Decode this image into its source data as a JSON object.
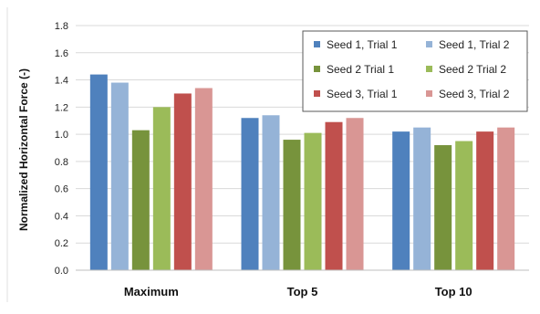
{
  "chart_data": {
    "type": "bar",
    "title": "",
    "xlabel": "",
    "ylabel": "Normalized Horizontal Force (-)",
    "ylim": [
      0,
      1.8
    ],
    "yticks": [
      "0.0",
      "0.2",
      "0.4",
      "0.6",
      "0.8",
      "1.0",
      "1.2",
      "1.4",
      "1.6",
      "1.8"
    ],
    "grid": true,
    "legend_position": "top-right",
    "categories": [
      "Maximum",
      "Top 5",
      "Top 10"
    ],
    "series": [
      {
        "name": "Seed 1, Trial 1",
        "color": "#4f81bd",
        "values": [
          1.44,
          1.12,
          1.02
        ]
      },
      {
        "name": "Seed 1, Trial 2",
        "color": "#95b3d7",
        "values": [
          1.38,
          1.14,
          1.05
        ]
      },
      {
        "name": "Seed 2 Trial 1",
        "color": "#77933c",
        "values": [
          1.03,
          0.96,
          0.92
        ]
      },
      {
        "name": "Seed 2 Trial 2",
        "color": "#9bbb59",
        "values": [
          1.2,
          1.01,
          0.95
        ]
      },
      {
        "name": "Seed 3, Trial 1",
        "color": "#c0504d",
        "values": [
          1.3,
          1.09,
          1.02
        ]
      },
      {
        "name": "Seed 3, Trial 2",
        "color": "#d99694",
        "values": [
          1.34,
          1.12,
          1.05
        ]
      }
    ]
  }
}
